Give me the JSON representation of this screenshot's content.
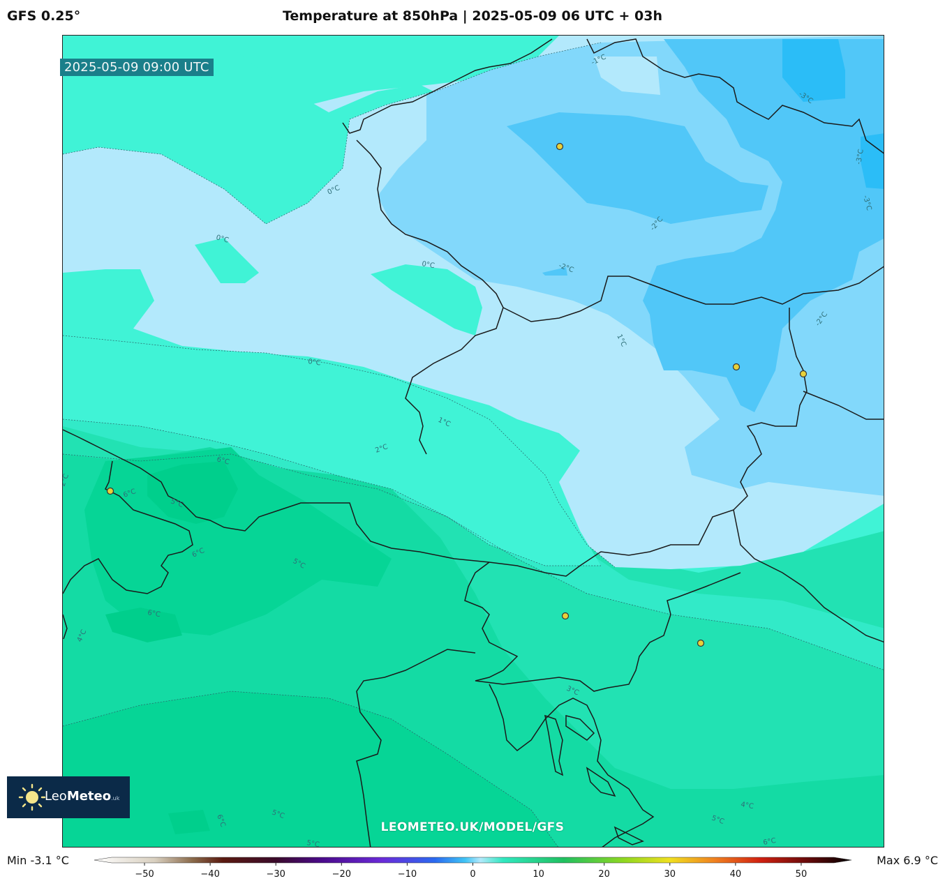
{
  "header": {
    "model": "GFS 0.25°",
    "title": "Temperature at 850hPa | 2025-05-09 06 UTC + 03h"
  },
  "map": {
    "valid_time": "2025-05-09 09:00 UTC",
    "site_url": "LEOMETEO.UK/MODEL/GFS",
    "contour_labels": [
      "-1°C",
      "-3°C",
      "-3°C",
      "-3°C",
      "0°C",
      "0°C",
      "0°C",
      "0°C",
      "-2°C",
      "-2°C",
      "1°C",
      "-2°C",
      "1°C",
      "2°C",
      "6°C",
      "6°C",
      "5°C",
      "2°C",
      "6°C",
      "5°C",
      "6°C",
      "4°C",
      "3°C",
      "4°C",
      "5°C",
      "5°C",
      "6°C",
      "6°C",
      "5°C"
    ],
    "colors": {
      "band_below_minus2": "#2bbdf7",
      "band_minus2_minus1": "#51c7f8",
      "band_minus1_0": "#82d8fb",
      "band_0_1_light": "#b3e9fc",
      "band_1_2": "#40f3d6",
      "band_2_3": "#32eac8",
      "band_3_4": "#22e2b3",
      "band_4_5": "#14dba4",
      "band_5_6": "#06d596",
      "band_6_7": "#00cf8c",
      "border_line": "#1a1a1a",
      "city_marker": "#e8d13a"
    }
  },
  "logo": {
    "brand_main": "Leo",
    "brand_bold": "Meteo",
    "brand_suffix": ".uk"
  },
  "colorbar": {
    "min_label": "Min -3.1 °C",
    "max_label": "Max 6.9 °C",
    "ticks": [
      "−50",
      "−40",
      "−30",
      "−20",
      "−10",
      "0",
      "10",
      "20",
      "30",
      "40",
      "50"
    ],
    "tick_values": [
      -50,
      -40,
      -30,
      -20,
      -10,
      0,
      10,
      20,
      30,
      40,
      50
    ],
    "range": [
      -55,
      55
    ]
  }
}
